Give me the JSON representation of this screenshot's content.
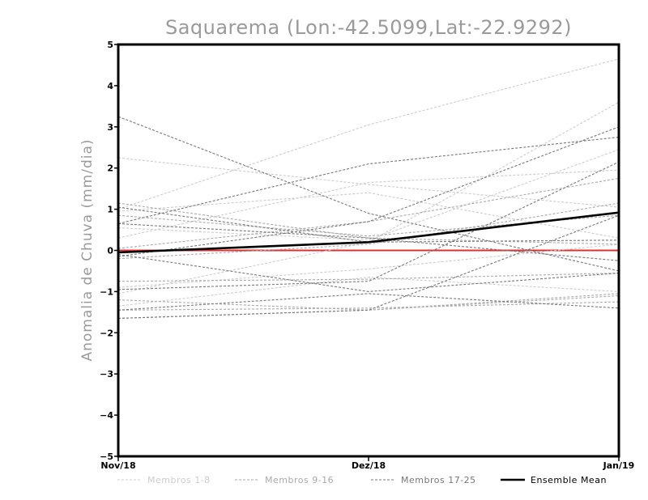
{
  "chart_data": {
    "type": "line",
    "title": "Saquarema (Lon:-42.5099,Lat:-22.9292)",
    "xlabel": "",
    "ylabel": "Anomalia de Chuva (mm/dia)",
    "categories": [
      "Nov/18",
      "Dez/18",
      "Jan/19"
    ],
    "ylim": [
      -5,
      5
    ],
    "yticks": [
      "5",
      "4",
      "3",
      "2",
      "1",
      "0",
      "-1",
      "-2",
      "-3",
      "-4",
      "-5"
    ],
    "zero_line_color": "#e03030",
    "groups": [
      {
        "name": "Membros 1-8",
        "color": "#cccccc",
        "style": "dashed",
        "series": [
          [
            1.0,
            3.05,
            4.65
          ],
          [
            2.25,
            1.6,
            1.05
          ],
          [
            0.3,
            1.65,
            1.95
          ],
          [
            -1.05,
            0.2,
            3.6
          ],
          [
            0.55,
            0.25,
            2.45
          ],
          [
            0.95,
            1.4,
            0.3
          ],
          [
            -0.9,
            -0.45,
            0.15
          ],
          [
            -1.35,
            -0.65,
            -1.0
          ]
        ]
      },
      {
        "name": "Membros 9-16",
        "color": "#aaaaaa",
        "style": "dashed",
        "series": [
          [
            0.05,
            0.7,
            1.75
          ],
          [
            0.85,
            0.35,
            0.85
          ],
          [
            1.15,
            0.3,
            0.15
          ],
          [
            -0.2,
            0.15,
            1.15
          ],
          [
            -0.75,
            -0.7,
            -0.55
          ],
          [
            -1.2,
            -1.45,
            -1.1
          ],
          [
            -1.45,
            -1.4,
            -1.25
          ],
          [
            -1.65,
            -1.45,
            -1.05
          ]
        ]
      },
      {
        "name": "Membros 17-25",
        "color": "#777777",
        "style": "dashed",
        "series": [
          [
            3.25,
            0.9,
            -0.5
          ],
          [
            0.65,
            2.1,
            2.75
          ],
          [
            -0.15,
            0.7,
            3.0
          ],
          [
            0.65,
            0.3,
            -0.25
          ],
          [
            1.05,
            0.2,
            0.25
          ],
          [
            -0.95,
            -0.75,
            2.15
          ],
          [
            -0.1,
            -1.0,
            -0.55
          ],
          [
            -1.45,
            -1.05,
            -1.4
          ],
          [
            -1.65,
            -1.45,
            0.85
          ]
        ]
      },
      {
        "name": "Ensemble Mean",
        "color": "#000000",
        "style": "solid",
        "series": [
          [
            -0.05,
            0.2,
            0.92
          ]
        ]
      }
    ],
    "legend": {
      "placement": "bottom",
      "entries": [
        "Membros 1-8",
        "Membros 9-16",
        "Membros 17-25",
        "Ensemble Mean"
      ]
    }
  }
}
